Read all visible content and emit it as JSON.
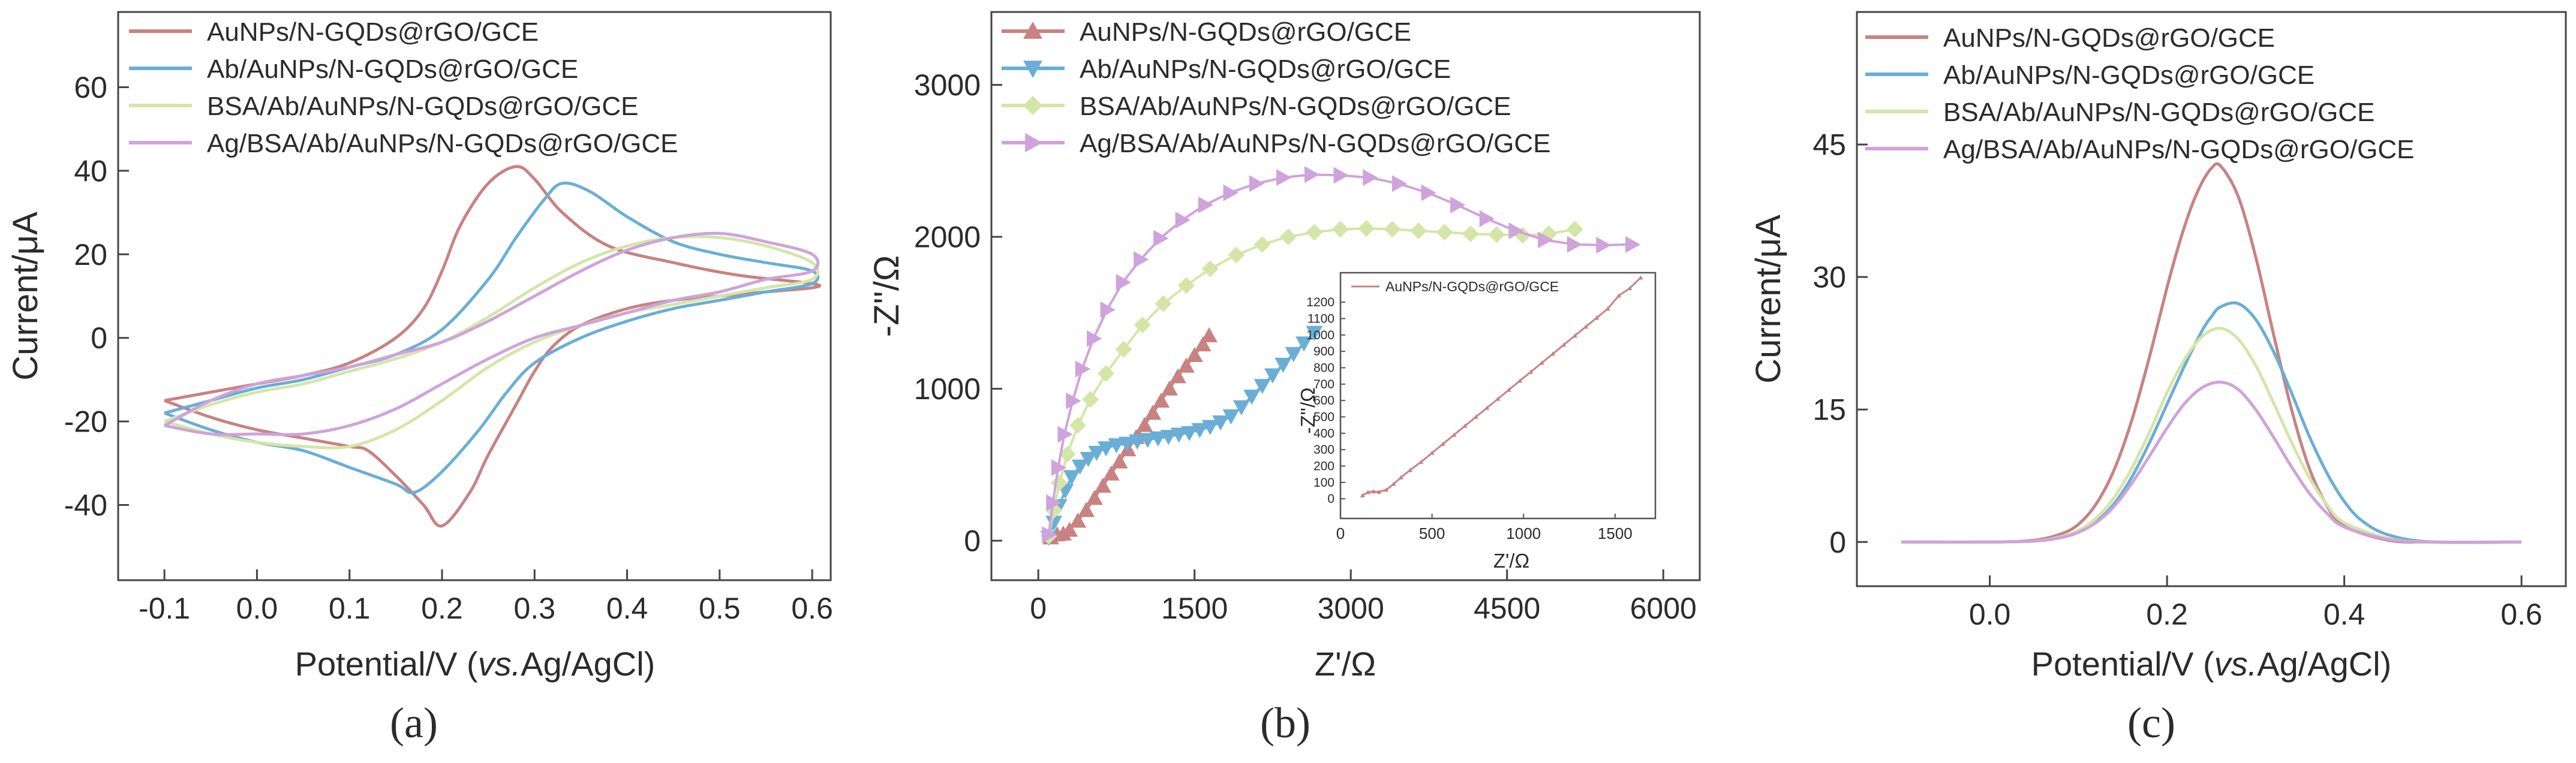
{
  "figure": {
    "panel_labels": [
      "(a)",
      "(b)",
      "(c)"
    ]
  },
  "legend_labels": [
    "AuNPs/N-GQDs@rGO/GCE",
    "Ab/AuNPs/N-GQDs@rGO/GCE",
    "BSA/Ab/AuNPs/N-GQDs@rGO/GCE",
    "Ag/BSA/Ab/AuNPs/N-GQDs@rGO/GCE"
  ],
  "colors": {
    "s1": "#c88282",
    "s2": "#6aaed6",
    "s3": "#d3e6a8",
    "s4": "#cfa3db"
  },
  "chart_data": [
    {
      "id": "a",
      "type": "line",
      "description_kind": "cyclic voltammetry",
      "xlabel_prefix": "Potential/V (",
      "xlabel_italic": "vs.",
      "xlabel_suffix": "Ag/AgCl)",
      "ylabel": "Current/μA",
      "xlim": [
        -0.15,
        0.62
      ],
      "ylim": [
        -58,
        78
      ],
      "xticks": [
        -0.1,
        0.0,
        0.1,
        0.2,
        0.3,
        0.4,
        0.5,
        0.6
      ],
      "xtick_labels": [
        "-0.1",
        "0.0",
        "0.1",
        "0.2",
        "0.3",
        "0.4",
        "0.5",
        "0.6"
      ],
      "yticks": [
        -40,
        -20,
        0,
        20,
        40,
        60
      ],
      "ytick_labels": [
        "-40",
        "-20",
        "0",
        "20",
        "40",
        "60"
      ],
      "legend_position": "top-left",
      "series": [
        {
          "name": "AuNPs/N-GQDs@rGO/GCE",
          "x": [
            -0.1,
            -0.05,
            0.0,
            0.05,
            0.1,
            0.15,
            0.18,
            0.2,
            0.22,
            0.25,
            0.28,
            0.3,
            0.33,
            0.38,
            0.45,
            0.52,
            0.6,
            0.6,
            0.55,
            0.5,
            0.45,
            0.4,
            0.35,
            0.32,
            0.3,
            0.28,
            0.25,
            0.23,
            0.2,
            0.18,
            0.15,
            0.12,
            0.1,
            0.05,
            0.0,
            -0.05,
            -0.1
          ],
          "y": [
            -15,
            -13,
            -11,
            -9,
            -6,
            0,
            7,
            16,
            27,
            37,
            41,
            38,
            30,
            22,
            18,
            15,
            13,
            12,
            11,
            10,
            9,
            7,
            3,
            -2,
            -8,
            -16,
            -28,
            -37,
            -45,
            -40,
            -33,
            -27,
            -26,
            -24,
            -22,
            -19,
            -15
          ]
        },
        {
          "name": "Ab/AuNPs/N-GQDs@rGO/GCE",
          "x": [
            -0.1,
            -0.05,
            0.0,
            0.05,
            0.1,
            0.15,
            0.2,
            0.25,
            0.28,
            0.31,
            0.33,
            0.36,
            0.4,
            0.45,
            0.5,
            0.55,
            0.6,
            0.6,
            0.55,
            0.5,
            0.45,
            0.4,
            0.35,
            0.3,
            0.27,
            0.24,
            0.2,
            0.17,
            0.15,
            0.1,
            0.05,
            0.0,
            -0.05,
            -0.1
          ],
          "y": [
            -18,
            -15,
            -12,
            -10,
            -7,
            -4,
            2,
            14,
            24,
            33,
            37,
            35,
            29,
            23,
            20,
            18,
            16,
            13,
            11,
            9,
            7,
            4,
            0,
            -6,
            -13,
            -22,
            -32,
            -37,
            -35,
            -31,
            -27,
            -25,
            -22,
            -18
          ]
        },
        {
          "name": "BSA/Ab/AuNPs/N-GQDs@rGO/GCE",
          "x": [
            -0.1,
            -0.05,
            0.0,
            0.05,
            0.1,
            0.15,
            0.2,
            0.25,
            0.3,
            0.35,
            0.4,
            0.45,
            0.5,
            0.55,
            0.6,
            0.6,
            0.55,
            0.5,
            0.45,
            0.4,
            0.35,
            0.3,
            0.25,
            0.2,
            0.15,
            0.1,
            0.05,
            0.0,
            -0.05,
            -0.1
          ],
          "y": [
            -20,
            -16,
            -13,
            -11,
            -8,
            -5,
            -1,
            5,
            12,
            18,
            22,
            24,
            24,
            22,
            18,
            14,
            12,
            10,
            8,
            6,
            3,
            -1,
            -7,
            -15,
            -22,
            -26,
            -26,
            -25,
            -23,
            -20
          ]
        },
        {
          "name": "Ag/BSA/Ab/AuNPs/N-GQDs@rGO/GCE",
          "x": [
            -0.1,
            -0.05,
            0.0,
            0.05,
            0.1,
            0.15,
            0.2,
            0.25,
            0.3,
            0.35,
            0.4,
            0.45,
            0.5,
            0.55,
            0.6,
            0.6,
            0.55,
            0.5,
            0.45,
            0.4,
            0.35,
            0.3,
            0.25,
            0.2,
            0.15,
            0.1,
            0.05,
            0.0,
            -0.05,
            -0.1
          ],
          "y": [
            -21,
            -15,
            -11,
            -9,
            -7,
            -4,
            -1,
            4,
            10,
            16,
            21,
            24,
            25,
            23,
            20,
            16,
            14,
            11,
            9,
            6,
            3,
            0,
            -5,
            -11,
            -17,
            -21,
            -23,
            -23,
            -23,
            -21
          ]
        }
      ]
    },
    {
      "id": "b",
      "type": "scatter",
      "description_kind": "Nyquist plot",
      "xlabel": "Z'/Ω",
      "ylabel": "-Z''/Ω",
      "xlim": [
        -450,
        6350
      ],
      "ylim": [
        -260,
        3480
      ],
      "xticks": [
        0,
        1500,
        3000,
        4500,
        6000
      ],
      "xtick_labels": [
        "0",
        "1500",
        "3000",
        "4500",
        "6000"
      ],
      "yticks": [
        0,
        1000,
        2000,
        3000
      ],
      "ytick_labels": [
        "0",
        "1000",
        "2000",
        "3000"
      ],
      "legend_position": "top-left",
      "series": [
        {
          "name": "AuNPs/N-GQDs@rGO/GCE",
          "marker": "triangle-up",
          "x": [
            120,
            180,
            240,
            300,
            380,
            460,
            540,
            620,
            700,
            780,
            860,
            940,
            1020,
            1100,
            1180,
            1260,
            1340,
            1420,
            1500,
            1580,
            1640
          ],
          "y": [
            20,
            40,
            45,
            70,
            130,
            200,
            280,
            360,
            440,
            520,
            600,
            680,
            760,
            840,
            920,
            1000,
            1080,
            1150,
            1220,
            1290,
            1350
          ]
        },
        {
          "name": "Ab/AuNPs/N-GQDs@rGO/GCE",
          "marker": "triangle-down",
          "x": [
            100,
            150,
            200,
            260,
            320,
            400,
            480,
            560,
            650,
            750,
            850,
            950,
            1050,
            1150,
            1250,
            1350,
            1450,
            1550,
            1650,
            1750,
            1850,
            1950,
            2050,
            2150,
            2250,
            2350,
            2450,
            2550,
            2650
          ],
          "y": [
            20,
            120,
            230,
            330,
            420,
            490,
            540,
            580,
            610,
            630,
            640,
            655,
            665,
            675,
            685,
            700,
            710,
            730,
            750,
            780,
            820,
            880,
            950,
            1020,
            1090,
            1160,
            1230,
            1300,
            1370
          ]
        },
        {
          "name": "BSA/Ab/AuNPs/N-GQDs@rGO/GCE",
          "marker": "diamond",
          "x": [
            100,
            150,
            200,
            280,
            380,
            500,
            650,
            820,
            1000,
            1200,
            1420,
            1650,
            1900,
            2150,
            2400,
            2650,
            2900,
            3150,
            3400,
            3650,
            3900,
            4150,
            4400,
            4650,
            4900,
            5150
          ],
          "y": [
            30,
            200,
            380,
            570,
            760,
            930,
            1100,
            1260,
            1420,
            1560,
            1680,
            1790,
            1880,
            1950,
            2000,
            2030,
            2050,
            2055,
            2050,
            2040,
            2030,
            2020,
            2015,
            2010,
            2020,
            2050
          ]
        },
        {
          "name": "Ag/BSA/Ab/AuNPs/N-GQDs@rGO/GCE",
          "marker": "triangle-right",
          "x": [
            100,
            140,
            190,
            250,
            330,
            420,
            530,
            660,
            810,
            980,
            1170,
            1380,
            1600,
            1840,
            2090,
            2350,
            2620,
            2900,
            3180,
            3460,
            3740,
            4020,
            4300,
            4580,
            4860,
            5140,
            5420,
            5700
          ],
          "y": [
            40,
            250,
            480,
            700,
            920,
            1130,
            1330,
            1520,
            1700,
            1850,
            1990,
            2110,
            2210,
            2290,
            2350,
            2390,
            2410,
            2405,
            2390,
            2350,
            2290,
            2210,
            2120,
            2040,
            1980,
            1950,
            1945,
            1950
          ]
        }
      ],
      "inset": {
        "type": "line",
        "legend": "AuNPs/N-GQDs@rGO/GCE",
        "xlabel": "Z'/Ω",
        "ylabel": "-Z''/Ω",
        "xlim": [
          0,
          1720
        ],
        "ylim": [
          -120,
          1380
        ],
        "xticks": [
          0,
          500,
          1000,
          1500
        ],
        "xtick_labels": [
          "0",
          "500",
          "1000",
          "1500"
        ],
        "yticks": [
          0,
          100,
          200,
          300,
          400,
          500,
          600,
          700,
          800,
          900,
          1000,
          1100,
          1200
        ],
        "ytick_labels": [
          "0",
          "100",
          "200",
          "300",
          "400",
          "500",
          "600",
          "700",
          "800",
          "900",
          "1000",
          "1100",
          "1200"
        ],
        "x": [
          120,
          150,
          180,
          210,
          250,
          290,
          330,
          380,
          440,
          500,
          560,
          620,
          680,
          740,
          800,
          860,
          920,
          980,
          1040,
          1100,
          1160,
          1220,
          1280,
          1340,
          1400,
          1460,
          1520,
          1580,
          1640
        ],
        "y": [
          20,
          40,
          45,
          42,
          55,
          90,
          130,
          175,
          225,
          280,
          335,
          390,
          445,
          500,
          555,
          610,
          665,
          720,
          775,
          830,
          885,
          940,
          995,
          1050,
          1105,
          1160,
          1240,
          1285,
          1350
        ]
      }
    },
    {
      "id": "c",
      "type": "line",
      "description_kind": "differential pulse voltammetry",
      "xlabel_prefix": "Potential/V (",
      "xlabel_italic": "vs.",
      "xlabel_suffix": "Ag/AgCl)",
      "ylabel": "Current/μA",
      "xlim": [
        -0.15,
        0.65
      ],
      "ylim": [
        -5,
        60
      ],
      "xticks": [
        0.0,
        0.2,
        0.4,
        0.6
      ],
      "xtick_labels": [
        "0.0",
        "0.2",
        "0.4",
        "0.6"
      ],
      "yticks": [
        0,
        15,
        30,
        45
      ],
      "ytick_labels": [
        "0",
        "15",
        "30",
        "45"
      ],
      "legend_position": "top-left",
      "series": [
        {
          "name": "AuNPs/N-GQDs@rGO/GCE",
          "x": [
            -0.1,
            0.0,
            0.05,
            0.08,
            0.1,
            0.12,
            0.14,
            0.16,
            0.18,
            0.2,
            0.21,
            0.22,
            0.23,
            0.24,
            0.25,
            0.26,
            0.28,
            0.3,
            0.32,
            0.34,
            0.36,
            0.38,
            0.4,
            0.45,
            0.5,
            0.6
          ],
          "y": [
            0,
            0,
            0.2,
            0.9,
            2.0,
            4.3,
            8.1,
            13.7,
            20.9,
            28.8,
            32.5,
            35.8,
            38.6,
            40.8,
            42.3,
            42.6,
            39.2,
            32.3,
            23.6,
            15.2,
            8.5,
            4.2,
            1.8,
            0.2,
            0,
            0
          ]
        },
        {
          "name": "Ab/AuNPs/N-GQDs@rGO/GCE",
          "x": [
            -0.1,
            0.0,
            0.05,
            0.08,
            0.1,
            0.12,
            0.14,
            0.16,
            0.18,
            0.2,
            0.22,
            0.24,
            0.25,
            0.26,
            0.28,
            0.3,
            0.32,
            0.34,
            0.36,
            0.38,
            0.4,
            0.42,
            0.45,
            0.5,
            0.6
          ],
          "y": [
            0,
            0,
            0.1,
            0.5,
            1.1,
            2.3,
            4.3,
            7.3,
            11.2,
            15.6,
            20.0,
            24.0,
            25.5,
            26.6,
            27.0,
            25.2,
            21.6,
            17.0,
            12.1,
            7.9,
            4.6,
            2.4,
            0.8,
            0,
            0
          ]
        },
        {
          "name": "BSA/Ab/AuNPs/N-GQDs@rGO/GCE",
          "x": [
            -0.1,
            0.0,
            0.05,
            0.08,
            0.1,
            0.12,
            0.14,
            0.16,
            0.18,
            0.2,
            0.22,
            0.24,
            0.26,
            0.28,
            0.3,
            0.32,
            0.34,
            0.36,
            0.38,
            0.4,
            0.45,
            0.5,
            0.6
          ],
          "y": [
            0,
            0,
            0.1,
            0.6,
            1.3,
            2.7,
            5.0,
            8.3,
            12.4,
            16.9,
            20.7,
            23.3,
            24.2,
            23.0,
            20.0,
            15.8,
            11.4,
            7.4,
            4.3,
            2.2,
            0.4,
            0,
            0
          ]
        },
        {
          "name": "Ag/BSA/Ab/AuNPs/N-GQDs@rGO/GCE",
          "x": [
            -0.1,
            0.0,
            0.05,
            0.08,
            0.1,
            0.12,
            0.14,
            0.16,
            0.18,
            0.2,
            0.22,
            0.24,
            0.26,
            0.28,
            0.3,
            0.32,
            0.34,
            0.36,
            0.38,
            0.4,
            0.45,
            0.5,
            0.6
          ],
          "y": [
            0,
            0,
            0.1,
            0.5,
            1.1,
            2.2,
            4.0,
            6.6,
            9.7,
            12.9,
            15.7,
            17.5,
            18.1,
            17.3,
            15.0,
            11.9,
            8.6,
            5.6,
            3.3,
            1.7,
            0.3,
            0,
            0
          ]
        }
      ]
    }
  ]
}
